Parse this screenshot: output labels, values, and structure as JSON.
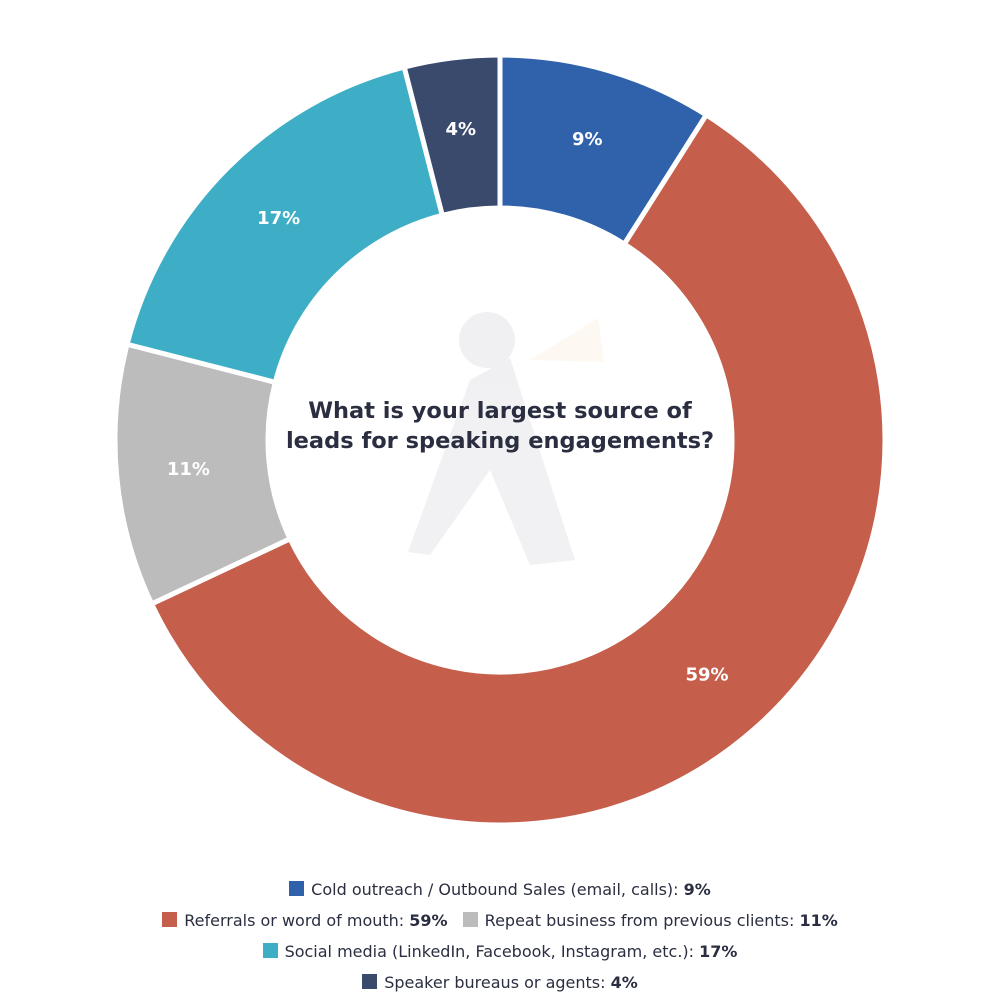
{
  "chart_data": {
    "type": "pie",
    "title": "What is your largest source of leads for speaking engagements?",
    "slices": [
      {
        "label": "Cold outreach / Outbound Sales (email, calls)",
        "value": 9,
        "display": "9%",
        "color": "#3062ac"
      },
      {
        "label": "Referrals or word of mouth",
        "value": 59,
        "display": "59%",
        "color": "#c55e4b"
      },
      {
        "label": "Repeat business from previous clients",
        "value": 11,
        "display": "11%",
        "color": "#bcbcbc"
      },
      {
        "label": "Social media (LinkedIn, Facebook, Instagram, etc.)",
        "value": 17,
        "display": "17%",
        "color": "#3eaec6"
      },
      {
        "label": "Speaker bureaus or agents",
        "value": 4,
        "display": "4%",
        "color": "#394a6d"
      }
    ],
    "legend_position": "bottom"
  }
}
